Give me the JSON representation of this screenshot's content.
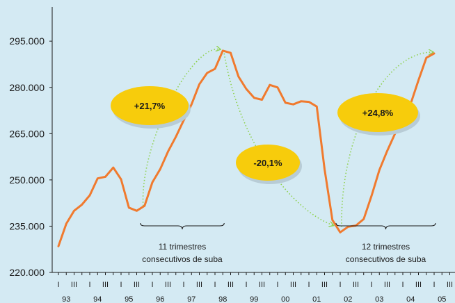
{
  "chart_data": {
    "type": "line",
    "title": "",
    "xlabel": "",
    "ylabel": "",
    "ylim": [
      220000,
      300000
    ],
    "yticks": [
      "220.000",
      "235.000",
      "250.000",
      "265.000",
      "280.000",
      "295.000"
    ],
    "ytick_values": [
      220000,
      235000,
      250000,
      265000,
      280000,
      295000
    ],
    "quarter_labels": [
      "I",
      "III"
    ],
    "years": [
      "93",
      "94",
      "95",
      "96",
      "97",
      "98",
      "99",
      "00",
      "01",
      "02",
      "03",
      "04",
      "05"
    ],
    "grid": false,
    "legend": "none",
    "line_color": "#f07a2e",
    "arrow_color": "#8fd14f",
    "ellipse_color": "#f7cc0c",
    "series": [
      {
        "x": [
          "93-I",
          "93-II",
          "93-III",
          "93-IV",
          "94-I",
          "94-II",
          "94-III",
          "94-IV",
          "95-I",
          "95-II",
          "95-III",
          "95-IV",
          "96-I",
          "96-II",
          "96-III",
          "96-IV",
          "97-I",
          "97-II",
          "97-III",
          "97-IV",
          "98-I",
          "98-II",
          "98-III",
          "98-IV",
          "99-I",
          "99-II",
          "99-III",
          "99-IV",
          "00-I",
          "00-II",
          "00-III",
          "00-IV",
          "01-I",
          "01-II",
          "01-III",
          "01-IV",
          "02-I",
          "02-II",
          "02-III",
          "02-IV",
          "03-I",
          "03-II",
          "03-III",
          "03-IV",
          "04-I",
          "04-II",
          "04-III",
          "04-IV",
          "05-I"
        ],
        "values": [
          228500,
          235800,
          240000,
          242000,
          245000,
          250500,
          251000,
          254000,
          250200,
          241000,
          240000,
          241600,
          249200,
          253500,
          259200,
          264000,
          269300,
          274500,
          281000,
          284700,
          286000,
          291900,
          291200,
          283500,
          279500,
          276600,
          276000,
          280800,
          280000,
          275000,
          274500,
          275500,
          275300,
          273800,
          253500,
          237000,
          233000,
          234800,
          235200,
          237300,
          244800,
          253200,
          259400,
          265000,
          270600,
          274700,
          282300,
          289600,
          291000
        ]
      }
    ],
    "annotations": [
      {
        "text": "+21,7%",
        "from": "95-III",
        "to": "98-II"
      },
      {
        "text": "-20,1%",
        "from": "98-II",
        "to": "02-I"
      },
      {
        "text": "+24,8%",
        "from": "02-I",
        "to": "05-I"
      }
    ],
    "braces": [
      {
        "line1": "11 trimestres",
        "line2": "consecutivos de suba",
        "from": "95-IV",
        "to": "98-II"
      },
      {
        "line1": "12 trimestres",
        "line2": "consecutivos de suba",
        "from": "02-I",
        "to": "05-I"
      }
    ]
  }
}
